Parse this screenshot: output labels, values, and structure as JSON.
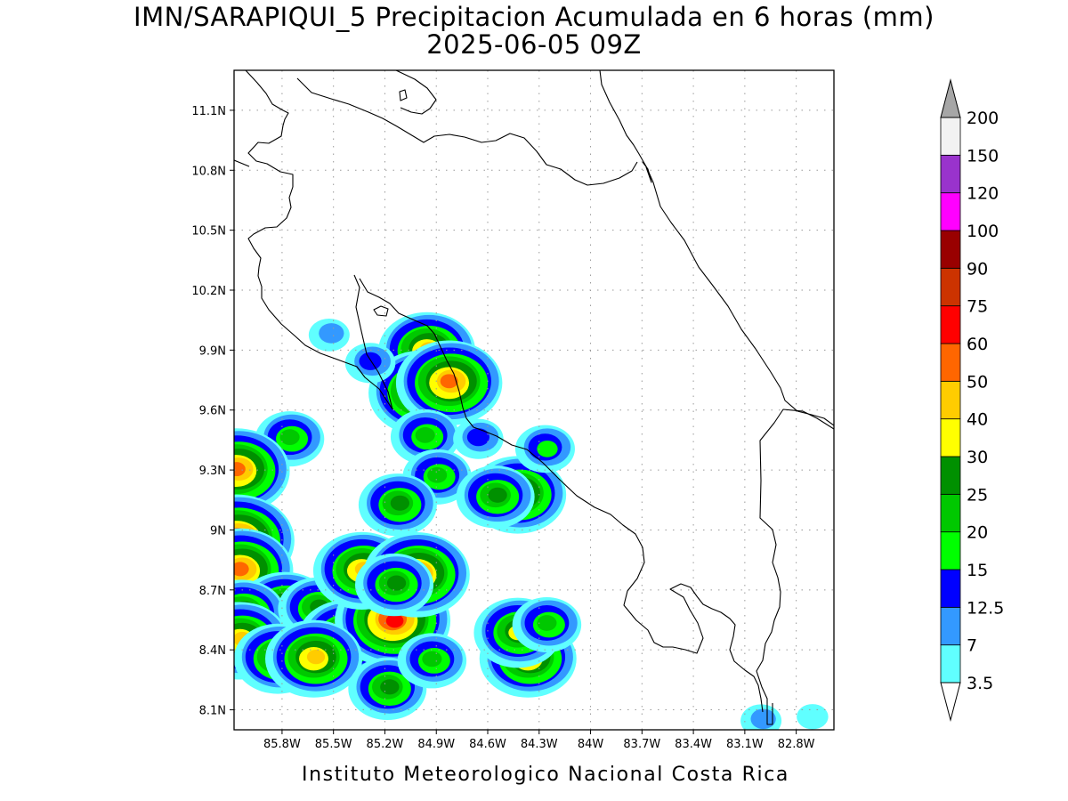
{
  "title": {
    "line1": "IMN/SARAPIQUI_5 Precipitacion Acumulada en 6 horas (mm)",
    "line2": "2025-06-05 09Z"
  },
  "credit": "Instituto Meteorologico Nacional Costa Rica",
  "map": {
    "lat_ticks": [
      {
        "value": 11.1,
        "label": "11.1N"
      },
      {
        "value": 10.8,
        "label": "10.8N"
      },
      {
        "value": 10.5,
        "label": "10.5N"
      },
      {
        "value": 10.2,
        "label": "10.2N"
      },
      {
        "value": 9.9,
        "label": "9.9N"
      },
      {
        "value": 9.6,
        "label": "9.6N"
      },
      {
        "value": 9.3,
        "label": "9.3N"
      },
      {
        "value": 9.0,
        "label": "9N"
      },
      {
        "value": 8.7,
        "label": "8.7N"
      },
      {
        "value": 8.4,
        "label": "8.4N"
      },
      {
        "value": 8.1,
        "label": "8.1N"
      }
    ],
    "lon_ticks": [
      {
        "value": -85.8,
        "label": "85.8W"
      },
      {
        "value": -85.5,
        "label": "85.5W"
      },
      {
        "value": -85.2,
        "label": "85.2W"
      },
      {
        "value": -84.9,
        "label": "84.9W"
      },
      {
        "value": -84.6,
        "label": "84.6W"
      },
      {
        "value": -84.3,
        "label": "84.3W"
      },
      {
        "value": -84.0,
        "label": "84W"
      },
      {
        "value": -83.7,
        "label": "83.7W"
      },
      {
        "value": -83.4,
        "label": "83.4W"
      },
      {
        "value": -83.1,
        "label": "83.1W"
      },
      {
        "value": -82.8,
        "label": "82.8W"
      }
    ],
    "grid": "dotted",
    "lon_range": [
      -86.08,
      -82.58
    ],
    "lat_range": [
      8.0,
      11.3
    ]
  },
  "legend": {
    "levels": [
      "3.5",
      "7",
      "12.5",
      "15",
      "20",
      "25",
      "30",
      "40",
      "50",
      "60",
      "75",
      "90",
      "100",
      "120",
      "150",
      "200"
    ],
    "colors": [
      "#60ffff",
      "#3399ff",
      "#0000ff",
      "#00ff00",
      "#00c800",
      "#009000",
      "#ffff00",
      "#ffcc00",
      "#ff6600",
      "#ff0000",
      "#cc3300",
      "#990000",
      "#ff00ff",
      "#9933cc",
      "#f2f2f2",
      "#a6a6a6"
    ],
    "placement": "right"
  },
  "cells": [
    {
      "lon": -84.95,
      "lat": 9.9,
      "peak": 40
    },
    {
      "lon": -84.98,
      "lat": 9.69,
      "peak": 55
    },
    {
      "lon": -84.82,
      "lat": 9.74,
      "peak": 50
    },
    {
      "lon": -85.28,
      "lat": 9.84,
      "peak": 12.5
    },
    {
      "lon": -85.52,
      "lat": 9.98,
      "peak": 7
    },
    {
      "lon": -85.75,
      "lat": 9.46,
      "peak": 20
    },
    {
      "lon": -86.06,
      "lat": 9.3,
      "peak": 50
    },
    {
      "lon": -84.96,
      "lat": 9.47,
      "peak": 20
    },
    {
      "lon": -84.89,
      "lat": 9.27,
      "peak": 20
    },
    {
      "lon": -85.12,
      "lat": 9.13,
      "peak": 25
    },
    {
      "lon": -84.42,
      "lat": 9.18,
      "peak": 40
    },
    {
      "lon": -84.55,
      "lat": 9.17,
      "peak": 25
    },
    {
      "lon": -84.26,
      "lat": 9.41,
      "peak": 15
    },
    {
      "lon": -84.65,
      "lat": 9.46,
      "peak": 12.5
    },
    {
      "lon": -86.06,
      "lat": 8.95,
      "peak": 60
    },
    {
      "lon": -86.04,
      "lat": 8.8,
      "peak": 55
    },
    {
      "lon": -85.78,
      "lat": 8.6,
      "peak": 40
    },
    {
      "lon": -86.03,
      "lat": 8.58,
      "peak": 30
    },
    {
      "lon": -86.04,
      "lat": 8.45,
      "peak": 40
    },
    {
      "lon": -85.59,
      "lat": 8.61,
      "peak": 25
    },
    {
      "lon": -85.42,
      "lat": 8.46,
      "peak": 40
    },
    {
      "lon": -85.15,
      "lat": 8.55,
      "peak": 60
    },
    {
      "lon": -85.33,
      "lat": 8.8,
      "peak": 40
    },
    {
      "lon": -85.01,
      "lat": 8.78,
      "peak": 55
    },
    {
      "lon": -85.14,
      "lat": 8.73,
      "peak": 25
    },
    {
      "lon": -85.82,
      "lat": 8.36,
      "peak": 30
    },
    {
      "lon": -85.61,
      "lat": 8.36,
      "peak": 40
    },
    {
      "lon": -85.18,
      "lat": 8.21,
      "peak": 25
    },
    {
      "lon": -84.92,
      "lat": 8.35,
      "peak": 20
    },
    {
      "lon": -84.36,
      "lat": 8.36,
      "peak": 45
    },
    {
      "lon": -84.42,
      "lat": 8.49,
      "peak": 35
    },
    {
      "lon": -84.25,
      "lat": 8.53,
      "peak": 20
    },
    {
      "lon": -83.0,
      "lat": 8.05,
      "peak": 7
    },
    {
      "lon": -82.7,
      "lat": 8.07,
      "peak": 3.5
    }
  ]
}
